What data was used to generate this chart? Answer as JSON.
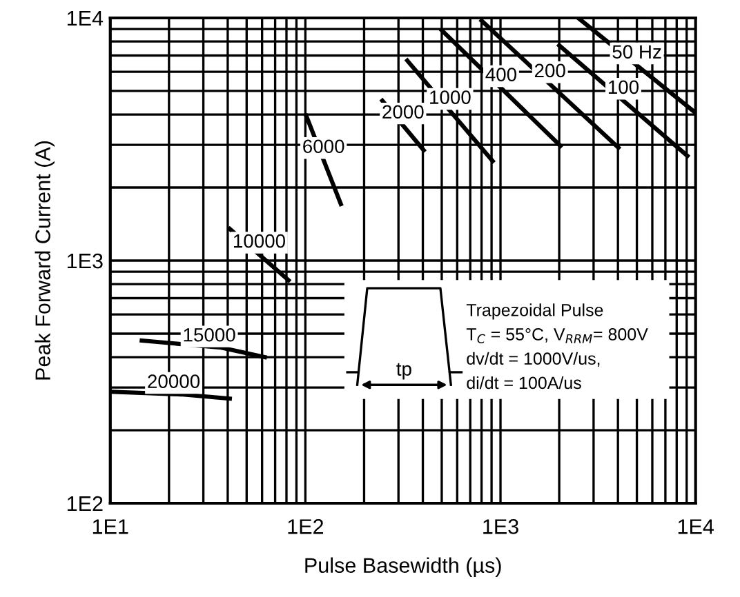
{
  "chart_data": {
    "type": "line",
    "xlabel": "Pulse Basewidth (µs)",
    "ylabel": "Peak Forward Current (A)",
    "log": "xy",
    "grid": true,
    "marker": "none",
    "line_style": "solid",
    "xlim": [
      10,
      10000
    ],
    "ylim": [
      100,
      10000
    ],
    "xticks": [
      {
        "value": 10,
        "label": "1E1"
      },
      {
        "value": 100,
        "label": "1E2"
      },
      {
        "value": 1000,
        "label": "1E3"
      },
      {
        "value": 10000,
        "label": "1E4"
      }
    ],
    "yticks": [
      {
        "value": 100,
        "label": "1E2"
      },
      {
        "value": 1000,
        "label": "1E3"
      },
      {
        "value": 10000,
        "label": "1E4"
      }
    ],
    "series": [
      {
        "name": "20000",
        "color": "#000000",
        "x": [
          10,
          23,
          41
        ],
        "values": [
          288,
          281,
          270
        ]
      },
      {
        "name": "15000",
        "color": "#000000",
        "x": [
          14.5,
          37,
          62
        ],
        "values": [
          468,
          438,
          400
        ]
      },
      {
        "name": "10000",
        "color": "#000000",
        "x": [
          41,
          82
        ],
        "values": [
          1350,
          830
        ]
      },
      {
        "name": "6000",
        "color": "#000000",
        "x": [
          101,
          152
        ],
        "values": [
          3950,
          1710
        ]
      },
      {
        "name": "2000",
        "color": "#000000",
        "x": [
          248,
          404
        ],
        "values": [
          4560,
          2850
        ]
      },
      {
        "name": "1000",
        "color": "#000000",
        "x": [
          333,
          912
        ],
        "values": [
          6670,
          2570
        ]
      },
      {
        "name": "400",
        "color": "#000000",
        "x": [
          500,
          2030
        ],
        "values": [
          8890,
          2970
        ]
      },
      {
        "name": "200",
        "color": "#000000",
        "x": [
          800,
          4020
        ],
        "values": [
          9740,
          2920
        ]
      },
      {
        "name": "100",
        "color": "#000000",
        "x": [
          2000,
          9080
        ],
        "values": [
          7700,
          2700
        ]
      },
      {
        "name": "50 Hz",
        "color": "#000000",
        "x": [
          2500,
          10000
        ],
        "values": [
          10000,
          4060
        ]
      }
    ],
    "annotations": [
      "tp",
      "Trapezoidal Pulse",
      "T$_{C}$ = 55°C, V$_{RRM}$= 800V",
      "dv/dt = 1000V/us,",
      "di/dt = 100A/us"
    ]
  }
}
